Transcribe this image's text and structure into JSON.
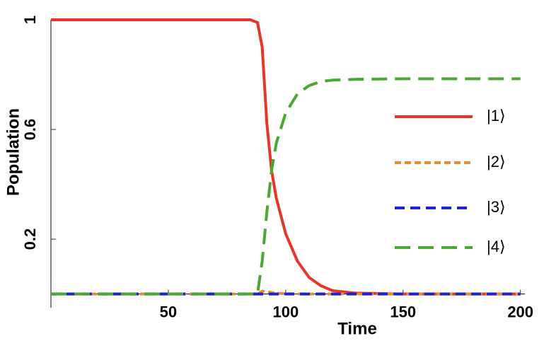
{
  "chart_data": {
    "type": "line",
    "x_label": "Time",
    "y_label": "Population",
    "x": [
      0,
      50,
      85,
      88,
      90,
      92,
      94,
      96,
      100,
      105,
      110,
      115,
      120,
      130,
      150,
      200
    ],
    "series": [
      {
        "name": "|1⟩",
        "color": "#e8352a",
        "values": [
          1,
          1,
          1,
          0.99,
          0.9,
          0.62,
          0.45,
          0.35,
          0.22,
          0.12,
          0.06,
          0.03,
          0.012,
          0.003,
          0,
          0
        ]
      },
      {
        "name": "|2⟩",
        "color": "#f08a30",
        "values": [
          0,
          0,
          0,
          0,
          0.01,
          0.008,
          0.005,
          0.003,
          0.001,
          0,
          0,
          0,
          0,
          0,
          0,
          0
        ]
      },
      {
        "name": "|3⟩",
        "color": "#1a22e0",
        "values": [
          0,
          0,
          0,
          0,
          0,
          0,
          0,
          0,
          0,
          0,
          0,
          0,
          0,
          0,
          0,
          0
        ]
      },
      {
        "name": "|4⟩",
        "color": "#4ba832",
        "values": [
          0,
          0,
          0,
          0,
          0.12,
          0.3,
          0.45,
          0.55,
          0.66,
          0.73,
          0.76,
          0.775,
          0.78,
          0.783,
          0.785,
          0.785
        ]
      }
    ],
    "xlim": [
      0,
      201
    ],
    "xticks": [
      50,
      100,
      150,
      200
    ],
    "ylim": [
      -0.05,
      1
    ],
    "yticks": [
      0.2,
      0.6,
      1
    ]
  }
}
